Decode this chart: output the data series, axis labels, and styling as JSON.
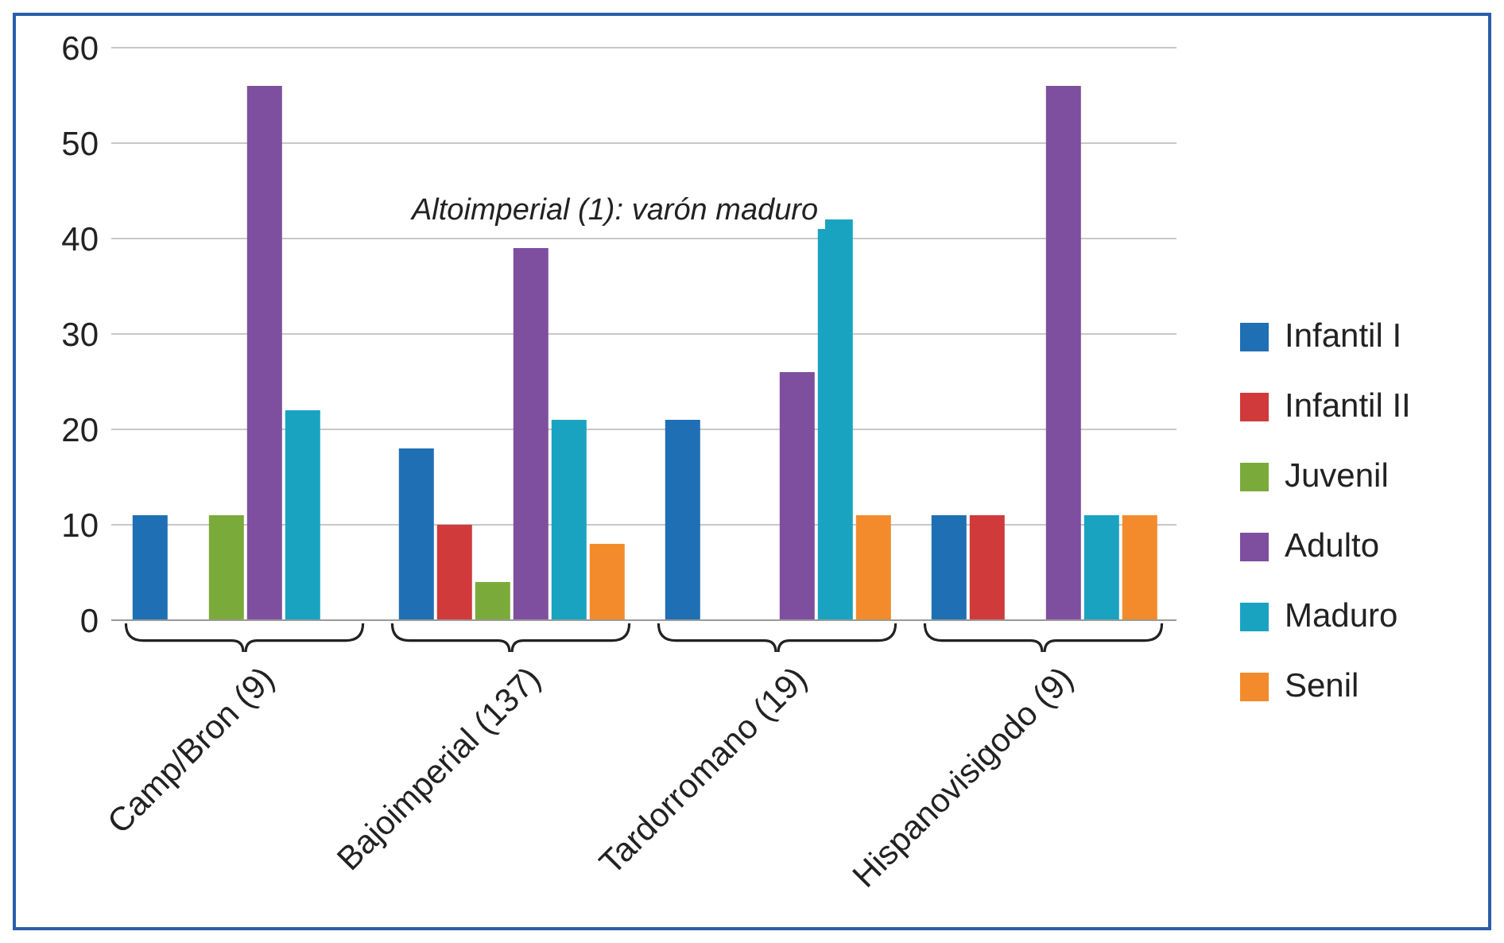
{
  "chart_data": {
    "type": "bar",
    "categories": [
      "Camp/Bron (9)",
      "Bajoimperial (137)",
      "Tardorromano (19)",
      "Hispanovisigodo (9)"
    ],
    "series": [
      {
        "name": "Infantil I",
        "color": "#1f6fb5",
        "values": [
          11,
          18,
          21,
          11
        ]
      },
      {
        "name": "Infantil II",
        "color": "#d03a3a",
        "values": [
          null,
          10,
          null,
          11
        ]
      },
      {
        "name": "Juvenil",
        "color": "#7aab3a",
        "values": [
          11,
          4,
          null,
          null
        ]
      },
      {
        "name": "Adulto",
        "color": "#7e4f9e",
        "values": [
          56,
          39,
          26,
          56
        ]
      },
      {
        "name": "Maduro",
        "color": "#1aa3c0",
        "values": [
          22,
          21,
          42,
          11
        ]
      },
      {
        "name": "Senil",
        "color": "#f38b2c",
        "values": [
          null,
          8,
          11,
          11
        ]
      }
    ],
    "ylim": [
      0,
      60
    ],
    "yticks": [
      0,
      10,
      20,
      30,
      40,
      50,
      60
    ],
    "grid": "y",
    "legend": "right",
    "annotations": [
      "Altoimperial (1): varón maduro"
    ]
  }
}
